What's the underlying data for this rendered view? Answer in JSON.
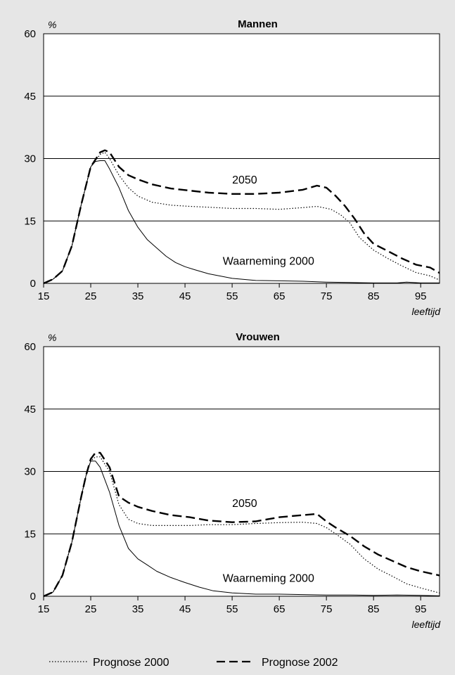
{
  "colors": {
    "background": "#e6e6e6",
    "plot_background": "#ffffff",
    "line": "#000000"
  },
  "legend": {
    "position": "bottom",
    "items": [
      {
        "label": "Prognose 2000",
        "style": "dotted"
      },
      {
        "label": "Prognose 2002",
        "style": "dashed"
      }
    ]
  },
  "chart_data": [
    {
      "type": "line",
      "title": "Mannen",
      "ylabel": "%",
      "xlabel": "leeftijd",
      "xlim": [
        15,
        99
      ],
      "ylim": [
        0,
        60
      ],
      "xticks": [
        15,
        25,
        35,
        45,
        55,
        65,
        75,
        85,
        95
      ],
      "yticks": [
        0,
        15,
        30,
        45,
        60
      ],
      "grid": "horizontal",
      "annotations": [
        {
          "text": "2050",
          "x": 55,
          "y": 24
        },
        {
          "text": "Waarneming 2000",
          "x": 53,
          "y": 4.5
        }
      ],
      "series": [
        {
          "name": "Waarneming 2000",
          "style": "solid",
          "x": [
            15,
            17,
            19,
            21,
            23,
            25,
            26,
            27,
            28,
            29,
            31,
            33,
            35,
            37,
            39,
            41,
            43,
            45,
            47,
            50,
            55,
            60,
            65,
            70,
            75,
            80,
            85,
            90,
            92,
            95,
            99
          ],
          "y": [
            0,
            1,
            3,
            9,
            19,
            28,
            29.3,
            29.5,
            29.5,
            27.5,
            23,
            17.5,
            13.5,
            10.5,
            8.5,
            6.5,
            5,
            4,
            3.3,
            2.3,
            1.2,
            0.7,
            0.6,
            0.5,
            0.3,
            0.2,
            0.1,
            0.1,
            0.3,
            0.1,
            0.1
          ]
        },
        {
          "name": "Prognose 2000",
          "style": "dotted",
          "x": [
            15,
            17,
            19,
            21,
            23,
            25,
            27,
            28,
            29,
            31,
            33,
            35,
            38,
            42,
            46,
            50,
            55,
            60,
            65,
            70,
            73,
            76,
            78,
            80,
            82,
            85,
            88,
            91,
            94,
            97,
            99
          ],
          "y": [
            0,
            1,
            3,
            9,
            19,
            28,
            31,
            31.5,
            30,
            26,
            23,
            21,
            19.5,
            18.8,
            18.5,
            18.3,
            18,
            18,
            17.8,
            18.2,
            18.5,
            17.8,
            16.5,
            14.5,
            11,
            8,
            6,
            4.2,
            2.6,
            1.8,
            0.8
          ]
        },
        {
          "name": "Prognose 2002",
          "style": "dashed",
          "x": [
            15,
            17,
            19,
            21,
            23,
            25,
            27,
            28,
            29,
            31,
            33,
            35,
            38,
            42,
            46,
            50,
            55,
            60,
            65,
            70,
            73,
            75,
            77,
            79,
            81,
            83,
            85,
            88,
            91,
            94,
            97,
            99
          ],
          "y": [
            0,
            1,
            3,
            9,
            19,
            28,
            31.5,
            32,
            31.5,
            28,
            26,
            25,
            23.8,
            22.8,
            22.3,
            21.8,
            21.5,
            21.5,
            21.8,
            22.5,
            23.5,
            23,
            21,
            18.5,
            15.5,
            12,
            9.5,
            7.8,
            6,
            4.5,
            3.8,
            2.5
          ]
        }
      ]
    },
    {
      "type": "line",
      "title": "Vrouwen",
      "ylabel": "%",
      "xlabel": "leeftijd",
      "xlim": [
        15,
        99
      ],
      "ylim": [
        0,
        60
      ],
      "xticks": [
        15,
        25,
        35,
        45,
        55,
        65,
        75,
        85,
        95
      ],
      "yticks": [
        0,
        15,
        30,
        45,
        60
      ],
      "grid": "horizontal",
      "annotations": [
        {
          "text": "2050",
          "x": 55,
          "y": 21.5
        },
        {
          "text": "Waarneming 2000",
          "x": 53,
          "y": 3.5
        }
      ],
      "series": [
        {
          "name": "Waarneming 2000",
          "style": "solid",
          "x": [
            15,
            17,
            19,
            21,
            23,
            24,
            25,
            26,
            27,
            29,
            31,
            33,
            35,
            37,
            39,
            42,
            45,
            48,
            51,
            55,
            60,
            65,
            70,
            75,
            80,
            85,
            90,
            95,
            99
          ],
          "y": [
            0,
            1,
            5,
            13,
            24,
            29,
            32.5,
            32.5,
            31,
            25,
            17,
            11.5,
            9,
            7.5,
            6,
            4.5,
            3.3,
            2.2,
            1.3,
            0.8,
            0.5,
            0.5,
            0.4,
            0.3,
            0.3,
            0.2,
            0.3,
            0.2,
            0.1
          ]
        },
        {
          "name": "Prognose 2000",
          "style": "dotted",
          "x": [
            15,
            17,
            19,
            21,
            23,
            24,
            25,
            26,
            27,
            29,
            31,
            33,
            35,
            38,
            42,
            46,
            50,
            55,
            60,
            65,
            70,
            73,
            75,
            77,
            80,
            83,
            86,
            89,
            92,
            95,
            99
          ],
          "y": [
            0,
            1,
            5,
            13,
            24,
            29,
            32.5,
            33.5,
            33.5,
            30,
            22,
            18.5,
            17.5,
            17,
            17,
            17,
            17.2,
            17.2,
            17.5,
            17.7,
            17.8,
            17.5,
            16.5,
            15,
            12.5,
            9,
            6.5,
            4.8,
            3,
            2,
            0.8
          ]
        },
        {
          "name": "Prognose 2002",
          "style": "dashed",
          "x": [
            15,
            17,
            19,
            21,
            23,
            24,
            25,
            26,
            27,
            29,
            31,
            33,
            35,
            38,
            42,
            46,
            50,
            55,
            60,
            65,
            70,
            73,
            75,
            77,
            80,
            83,
            86,
            89,
            92,
            95,
            99
          ],
          "y": [
            0,
            1,
            5,
            13,
            24,
            29,
            33,
            34.5,
            34.5,
            31,
            24,
            22.5,
            21.5,
            20.5,
            19.5,
            19,
            18.2,
            17.8,
            18,
            19,
            19.5,
            19.8,
            18,
            16.5,
            14.5,
            12,
            10,
            8.5,
            7,
            6,
            5
          ]
        }
      ]
    }
  ]
}
